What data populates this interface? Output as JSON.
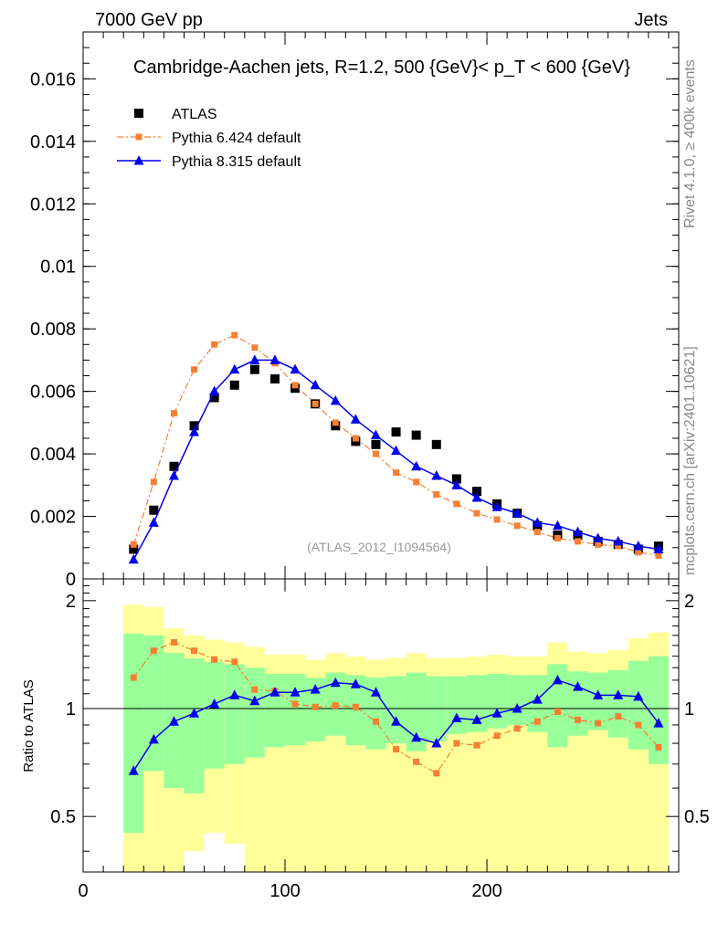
{
  "header": {
    "left_label": "7000 GeV pp",
    "right_label": "Jets",
    "side_label_top": "Rivet 4.1.0, ≥ 400k events",
    "side_label_bottom": "mcplots.cern.ch [arXiv:2401.10621]"
  },
  "chart_data": [
    {
      "type": "line",
      "panel": "main",
      "title": "Cambridge-Aachen jets, R=1.2, 500 {GeV}< p_T < 600 {GeV}",
      "annotation": "(ATLAS_2012_I1094564)",
      "xlim": [
        0,
        295
      ],
      "ylim": [
        0,
        0.0175
      ],
      "yticks": [
        0,
        0.002,
        0.004,
        0.006,
        0.008,
        0.01,
        0.012,
        0.014,
        0.016
      ],
      "ytick_labels": [
        "0",
        "0.002",
        "0.004",
        "0.006",
        "0.008",
        "0.01",
        "0.012",
        "0.014",
        "0.016"
      ],
      "legend_position": "top-left",
      "x": [
        25,
        35,
        45,
        55,
        65,
        75,
        85,
        95,
        105,
        115,
        125,
        135,
        145,
        155,
        165,
        175,
        185,
        195,
        205,
        215,
        225,
        235,
        245,
        255,
        265,
        275,
        285
      ],
      "series": [
        {
          "name": "ATLAS",
          "style": "markers",
          "color": "#000000",
          "marker": "square",
          "values": [
            0.00095,
            0.0022,
            0.0036,
            0.0049,
            0.0058,
            0.0062,
            0.0067,
            0.0064,
            0.0061,
            0.0056,
            0.0049,
            0.0044,
            0.0043,
            0.0047,
            0.0046,
            0.0043,
            0.0032,
            0.0028,
            0.0024,
            0.0021,
            0.0017,
            0.0014,
            0.0014,
            0.0012,
            0.0011,
            0.00095,
            0.00105
          ]
        },
        {
          "name": "Pythia 6.424 default",
          "style": "dashdot",
          "color": "#f57f33",
          "marker": "square",
          "values": [
            0.0011,
            0.0031,
            0.0053,
            0.0067,
            0.0075,
            0.0078,
            0.0074,
            0.0069,
            0.0062,
            0.0056,
            0.005,
            0.0045,
            0.004,
            0.0034,
            0.0031,
            0.0027,
            0.0024,
            0.0021,
            0.0019,
            0.0017,
            0.0015,
            0.0013,
            0.0012,
            0.0011,
            0.00105,
            0.00085,
            0.00075
          ]
        },
        {
          "name": "Pythia 8.315 default",
          "style": "solid",
          "color": "#0000ee",
          "marker": "triangle",
          "values": [
            0.00062,
            0.0018,
            0.0033,
            0.0047,
            0.006,
            0.0067,
            0.007,
            0.007,
            0.0067,
            0.0062,
            0.0057,
            0.0051,
            0.0046,
            0.0041,
            0.0036,
            0.0033,
            0.003,
            0.0026,
            0.0023,
            0.0021,
            0.0018,
            0.0017,
            0.0015,
            0.0013,
            0.0012,
            0.00105,
            0.00095
          ]
        }
      ]
    },
    {
      "type": "line",
      "panel": "ratio",
      "ylabel": "Ratio to ATLAS",
      "xlim": [
        0,
        295
      ],
      "ylim": [
        0.35,
        2.3
      ],
      "xticks": [
        0,
        100,
        200
      ],
      "xtick_labels": [
        "0",
        "100",
        "200"
      ],
      "yticks": [
        0.5,
        1,
        2
      ],
      "ytick_labels": [
        "0.5",
        "1",
        "2"
      ],
      "reference_line": 1,
      "x": [
        25,
        35,
        45,
        55,
        65,
        75,
        85,
        95,
        105,
        115,
        125,
        135,
        145,
        155,
        165,
        175,
        185,
        195,
        205,
        215,
        225,
        235,
        245,
        255,
        265,
        275,
        285
      ],
      "bands": {
        "inner_color": "#99ff99",
        "outer_color": "#ffff99",
        "inner_low": [
          0.45,
          0.67,
          0.6,
          0.58,
          0.68,
          0.7,
          0.73,
          0.78,
          0.79,
          0.81,
          0.84,
          0.79,
          0.77,
          0.8,
          0.76,
          0.81,
          0.85,
          0.86,
          0.88,
          0.9,
          0.86,
          0.78,
          0.84,
          0.87,
          0.83,
          0.77,
          0.7
        ],
        "inner_high": [
          1.62,
          1.6,
          1.43,
          1.38,
          1.35,
          1.33,
          1.3,
          1.25,
          1.25,
          1.22,
          1.26,
          1.24,
          1.22,
          1.23,
          1.26,
          1.23,
          1.23,
          1.24,
          1.25,
          1.24,
          1.24,
          1.33,
          1.27,
          1.26,
          1.28,
          1.36,
          1.4
        ]
      },
      "outer_bands_visible_low": [
        0.35,
        0.35,
        0.35,
        0.4,
        0.45,
        0.42,
        0.35,
        0.35,
        0.35,
        0.35,
        0.35,
        0.35,
        0.35,
        0.35,
        0.35,
        0.35,
        0.35,
        0.35,
        0.35,
        0.35,
        0.35,
        0.35,
        0.35,
        0.35,
        0.35,
        0.35,
        0.35
      ],
      "series": [
        {
          "name": "Pythia 6.424 default",
          "style": "dashdot",
          "color": "#f57f33",
          "marker": "square",
          "values": [
            1.22,
            1.45,
            1.53,
            1.45,
            1.37,
            1.35,
            1.13,
            1.12,
            1.03,
            1.01,
            1.02,
            1.01,
            0.92,
            0.77,
            0.71,
            0.66,
            0.8,
            0.79,
            0.84,
            0.88,
            0.92,
            0.98,
            0.93,
            0.91,
            0.95,
            0.9,
            0.78
          ]
        },
        {
          "name": "Pythia 8.315 default",
          "style": "solid",
          "color": "#0000ee",
          "marker": "triangle",
          "values": [
            0.67,
            0.82,
            0.92,
            0.97,
            1.03,
            1.09,
            1.05,
            1.11,
            1.11,
            1.13,
            1.18,
            1.17,
            1.11,
            0.92,
            0.83,
            0.8,
            0.94,
            0.93,
            0.97,
            1.0,
            1.06,
            1.2,
            1.15,
            1.09,
            1.09,
            1.08,
            0.91
          ]
        }
      ]
    }
  ]
}
